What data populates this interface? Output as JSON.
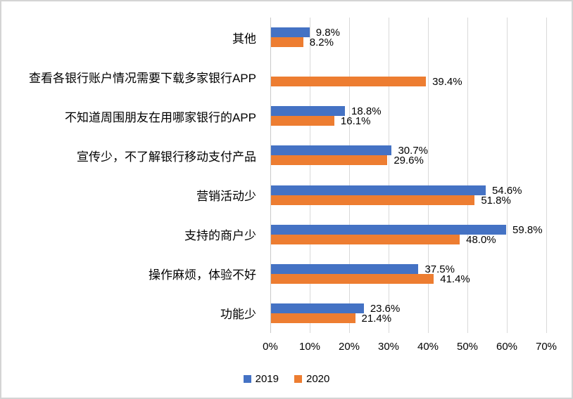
{
  "chart_data": {
    "type": "bar",
    "orientation": "horizontal",
    "title": "",
    "categories": [
      "其他",
      "查看各银行账户情况需要下载多家银行APP",
      "不知道周围朋友在用哪家银行的APP",
      "宣传少，不了解银行移动支付产品",
      "营销活动少",
      "支持的商户少",
      "操作麻烦，体验不好",
      "功能少"
    ],
    "series": [
      {
        "name": "2019",
        "color": "#4472C4",
        "values": [
          9.8,
          null,
          18.8,
          30.7,
          54.6,
          59.8,
          37.5,
          23.6
        ],
        "labels": [
          "9.8%",
          "",
          "18.8%",
          "30.7%",
          "54.6%",
          "59.8%",
          "37.5%",
          "23.6%"
        ]
      },
      {
        "name": "2020",
        "color": "#ED7D31",
        "values": [
          8.2,
          39.4,
          16.1,
          29.6,
          51.8,
          48.0,
          41.4,
          21.4
        ],
        "labels": [
          "8.2%",
          "39.4%",
          "16.1%",
          "29.6%",
          "51.8%",
          "48.0%",
          "41.4%",
          "21.4%"
        ]
      }
    ],
    "x_axis": {
      "min": 0,
      "max": 70,
      "ticks": [
        "0%",
        "10%",
        "20%",
        "30%",
        "40%",
        "50%",
        "60%",
        "70%"
      ]
    },
    "grid": true,
    "legend_position": "bottom",
    "legend": [
      {
        "label": "2019",
        "color": "#4472C4"
      },
      {
        "label": "2020",
        "color": "#ED7D31"
      }
    ]
  },
  "colors": {
    "series_2019": "#4472C4",
    "series_2020": "#ED7D31",
    "gridline": "#D9D9D9",
    "axis_line": "#C8C8C8",
    "text": "#000000",
    "background": "#FFFFFF",
    "frame_border": "#D4D4D4"
  }
}
